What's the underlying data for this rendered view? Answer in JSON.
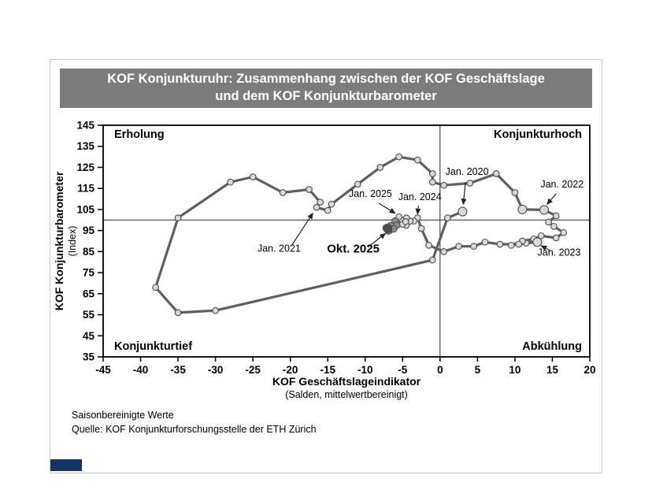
{
  "header": {
    "title_line1": "KOF Konjunkturuhr: Zusammenhang zwischen der KOF Geschäftslage",
    "title_line2": "und dem KOF Konjunkturbarometer"
  },
  "footer": {
    "line1": "Saisonbereinigte Werte",
    "line2": "Quelle: KOF Konjunkturforschungsstelle der ETH Zürich",
    "brand_color": "#17335f"
  },
  "chart_data": {
    "type": "line",
    "title": "KOF Konjunkturuhr: Zusammenhang zwischen der KOF Geschäftslage und dem KOF Konjunkturbarometer",
    "xlabel": "KOF Geschäftslageindikator",
    "xlabel_sub": "(Salden, mittelwertbereinigt)",
    "ylabel": "KOF Konjunkturbarometer",
    "ylabel_sub": "(Index)",
    "xlim": [
      -45,
      20
    ],
    "ylim": [
      35,
      145
    ],
    "xticks": [
      -45,
      -40,
      -35,
      -30,
      -25,
      -20,
      -15,
      -10,
      -5,
      0,
      5,
      10,
      15,
      20
    ],
    "yticks": [
      35,
      45,
      55,
      65,
      75,
      85,
      95,
      105,
      115,
      125,
      135,
      145
    ],
    "reference_lines": {
      "x": 0,
      "y": 100
    },
    "quadrants": {
      "top_left": "Erholung",
      "top_right": "Konjunkturhoch",
      "bottom_left": "Konjunkturtief",
      "bottom_right": "Abkühlung"
    },
    "colors": {
      "line": "#5f5f5f",
      "marker_fill": "#d9d9d9",
      "marker_recent": "#8c8c8c",
      "marker_current": "#4f4f4f"
    },
    "points": [
      {
        "x": 3,
        "y": 104,
        "k": "big",
        "date": "Jan. 2020"
      },
      {
        "x": 1,
        "y": 101
      },
      {
        "x": -1,
        "y": 81
      },
      {
        "x": -30,
        "y": 57
      },
      {
        "x": -35,
        "y": 56
      },
      {
        "x": -38,
        "y": 68
      },
      {
        "x": -35,
        "y": 101
      },
      {
        "x": -28,
        "y": 118
      },
      {
        "x": -25,
        "y": 120.5
      },
      {
        "x": -21,
        "y": 113
      },
      {
        "x": -17.5,
        "y": 114.5
      },
      {
        "x": -16,
        "y": 108.5
      },
      {
        "x": -16.5,
        "y": 106,
        "date": "Jan. 2021"
      },
      {
        "x": -15,
        "y": 104.5
      },
      {
        "x": -14.5,
        "y": 107.5
      },
      {
        "x": -11,
        "y": 117
      },
      {
        "x": -8,
        "y": 125
      },
      {
        "x": -5.5,
        "y": 130
      },
      {
        "x": -3,
        "y": 128.5
      },
      {
        "x": -1,
        "y": 122
      },
      {
        "x": -1,
        "y": 118
      },
      {
        "x": 0.5,
        "y": 116.5
      },
      {
        "x": 4,
        "y": 117.5
      },
      {
        "x": 7.5,
        "y": 122
      },
      {
        "x": 10,
        "y": 113
      },
      {
        "x": 11,
        "y": 105,
        "k": "big"
      },
      {
        "x": 13.9,
        "y": 104.8,
        "k": "big",
        "date": "Jan. 2022"
      },
      {
        "x": 15.5,
        "y": 102
      },
      {
        "x": 14.5,
        "y": 99
      },
      {
        "x": 15.2,
        "y": 97
      },
      {
        "x": 16.5,
        "y": 94
      },
      {
        "x": 15.5,
        "y": 91.5
      },
      {
        "x": 13.5,
        "y": 92.5
      },
      {
        "x": 11.5,
        "y": 89
      },
      {
        "x": 9.5,
        "y": 88
      },
      {
        "x": 11,
        "y": 90
      },
      {
        "x": 12.5,
        "y": 91
      },
      {
        "x": 13,
        "y": 89.5,
        "k": "big",
        "date": "Jan. 2023"
      },
      {
        "x": 10.5,
        "y": 88.5
      },
      {
        "x": 8,
        "y": 88.5
      },
      {
        "x": 6,
        "y": 89.5
      },
      {
        "x": 4.5,
        "y": 87.5
      },
      {
        "x": 2.5,
        "y": 87.5
      },
      {
        "x": 0.5,
        "y": 85
      },
      {
        "x": -1.5,
        "y": 88
      },
      {
        "x": -2.5,
        "y": 96
      },
      {
        "x": -3,
        "y": 101,
        "date": "Jan. 2024"
      },
      {
        "x": -3.5,
        "y": 99.5
      },
      {
        "x": -4.5,
        "y": 97.5
      },
      {
        "x": -5,
        "y": 98.5
      },
      {
        "x": -4,
        "y": 99.5
      },
      {
        "x": -4.5,
        "y": 101
      },
      {
        "x": -5.2,
        "y": 100
      },
      {
        "x": -5.8,
        "y": 98.8
      },
      {
        "x": -5,
        "y": 98
      },
      {
        "x": -4.6,
        "y": 99.2
      },
      {
        "x": -5.5,
        "y": 101.5,
        "date": "Jan. 2025"
      },
      {
        "x": -6,
        "y": 99.5,
        "k": "recent"
      },
      {
        "x": -5.8,
        "y": 97.5,
        "k": "recent"
      },
      {
        "x": -6.3,
        "y": 96,
        "k": "recent"
      },
      {
        "x": -6.8,
        "y": 95,
        "k": "recent"
      },
      {
        "x": -7.2,
        "y": 96.2,
        "k": "recent"
      },
      {
        "x": -6.6,
        "y": 97.3,
        "k": "recent"
      },
      {
        "x": -6.2,
        "y": 95.8,
        "k": "recent"
      },
      {
        "x": -6.9,
        "y": 94.8,
        "k": "recent"
      },
      {
        "x": -7,
        "y": 96,
        "k": "current",
        "date": "Okt. 2025"
      }
    ],
    "annotations": [
      {
        "label": "Jan. 2020",
        "tx": 3.6,
        "ty": 121.5,
        "ax": 3.4,
        "ay": 118,
        "bx": 3.1,
        "by": 107.5
      },
      {
        "label": "Jan. 2022",
        "tx": 16.3,
        "ty": 115.5,
        "ax": 15.5,
        "ay": 112.5,
        "bx": 14.3,
        "by": 107.5
      },
      {
        "label": "Jan. 2023",
        "tx": 15.9,
        "ty": 83,
        "ax": 14.7,
        "ay": 85.5,
        "bx": 13.5,
        "by": 87.8
      },
      {
        "label": "Jan. 2021",
        "tx": -21.5,
        "ty": 85,
        "ax": -19.8,
        "ay": 88,
        "bx": -17,
        "by": 103.2
      },
      {
        "label": "Jan. 2025",
        "tx": -9.3,
        "ty": 111,
        "ax": -8.2,
        "ay": 108,
        "bx": -6,
        "by": 103.2
      },
      {
        "label": "Jan. 2024",
        "tx": -2.7,
        "ty": 109.5,
        "ax": -2.9,
        "ay": 106.8,
        "bx": -3,
        "by": 102.8
      },
      {
        "label": "Okt. 2025",
        "tx": -11.6,
        "ty": 84.5,
        "ax": -9.6,
        "ay": 87.2,
        "bx": -7.3,
        "by": 93.6,
        "bold": true,
        "size": 15
      }
    ],
    "legend": "none",
    "grid": false
  }
}
